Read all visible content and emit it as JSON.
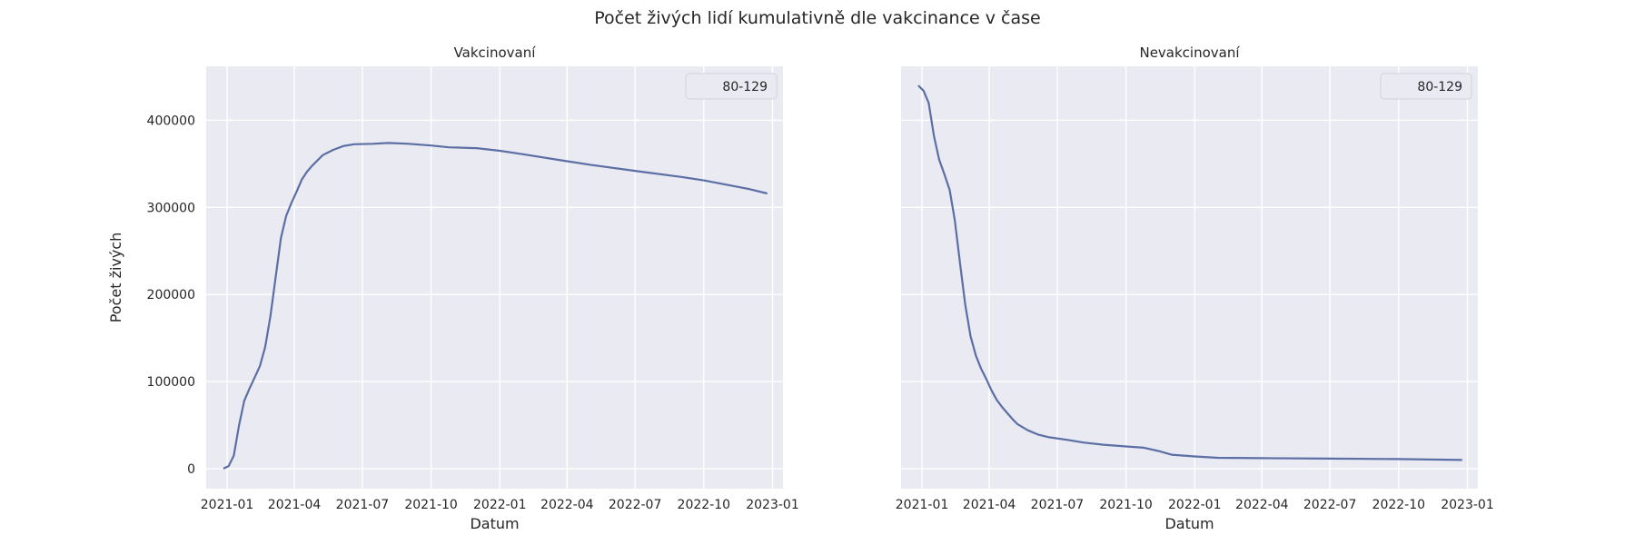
{
  "figure": {
    "suptitle": "Počet živých lidí kumulativně dle vakcinance v čase"
  },
  "colors": {
    "background": "#ffffff",
    "plot_area": "#eaeaf2",
    "grid": "#ffffff",
    "series": "#5b6fa4",
    "text": "#262626"
  },
  "chart_data": [
    {
      "type": "line",
      "title": "Vakcinovaní",
      "xlabel": "Datum",
      "ylabel": "Počet živých",
      "x_ticks": [
        "2021-01",
        "2021-04",
        "2021-07",
        "2021-10",
        "2022-01",
        "2022-04",
        "2022-07",
        "2022-10",
        "2023-01"
      ],
      "y_ticks": [
        "0",
        "100000",
        "200000",
        "300000",
        "400000"
      ],
      "xlim": [
        "2020-12-04",
        "2023-01-15"
      ],
      "ylim": [
        -23000,
        462000
      ],
      "grid": true,
      "legend": {
        "placement": "top-right",
        "entries": [
          "80-129"
        ]
      },
      "series": [
        {
          "name": "80-129",
          "points": [
            [
              "2020-12-27",
              0
            ],
            [
              "2021-01-03",
              3000
            ],
            [
              "2021-01-10",
              15000
            ],
            [
              "2021-01-17",
              50000
            ],
            [
              "2021-01-24",
              78000
            ],
            [
              "2021-01-31",
              92000
            ],
            [
              "2021-02-07",
              105000
            ],
            [
              "2021-02-14",
              118000
            ],
            [
              "2021-02-21",
              140000
            ],
            [
              "2021-02-28",
              175000
            ],
            [
              "2021-03-07",
              220000
            ],
            [
              "2021-03-14",
              265000
            ],
            [
              "2021-03-21",
              290000
            ],
            [
              "2021-03-28",
              305000
            ],
            [
              "2021-04-04",
              318000
            ],
            [
              "2021-04-11",
              332000
            ],
            [
              "2021-04-18",
              341000
            ],
            [
              "2021-04-25",
              348000
            ],
            [
              "2021-05-02",
              354000
            ],
            [
              "2021-05-09",
              360000
            ],
            [
              "2021-05-23",
              366000
            ],
            [
              "2021-06-06",
              370500
            ],
            [
              "2021-06-20",
              372500
            ],
            [
              "2021-07-15",
              373000
            ],
            [
              "2021-08-05",
              374000
            ],
            [
              "2021-09-01",
              373000
            ],
            [
              "2021-10-01",
              371000
            ],
            [
              "2021-10-25",
              369000
            ],
            [
              "2021-12-01",
              368000
            ],
            [
              "2022-01-01",
              365000
            ],
            [
              "2022-02-01",
              361000
            ],
            [
              "2022-04-01",
              353000
            ],
            [
              "2022-05-01",
              349000
            ],
            [
              "2022-07-01",
              342000
            ],
            [
              "2022-09-01",
              335000
            ],
            [
              "2022-10-01",
              331000
            ],
            [
              "2022-11-01",
              326000
            ],
            [
              "2022-12-01",
              321000
            ],
            [
              "2022-12-25",
              316000
            ]
          ]
        }
      ]
    },
    {
      "type": "line",
      "title": "Nevakcinovaní",
      "xlabel": "Datum",
      "ylabel": "",
      "x_ticks": [
        "2021-01",
        "2021-04",
        "2021-07",
        "2021-10",
        "2022-01",
        "2022-04",
        "2022-07",
        "2022-10",
        "2023-01"
      ],
      "y_ticks": [],
      "xlim": [
        "2020-12-04",
        "2023-01-15"
      ],
      "ylim": [
        -23000,
        462000
      ],
      "grid": true,
      "legend": {
        "placement": "top-right",
        "entries": [
          "80-129"
        ]
      },
      "series": [
        {
          "name": "80-129",
          "points": [
            [
              "2020-12-27",
              440000
            ],
            [
              "2021-01-03",
              434000
            ],
            [
              "2021-01-10",
              420000
            ],
            [
              "2021-01-17",
              382000
            ],
            [
              "2021-01-24",
              355000
            ],
            [
              "2021-01-31",
              338000
            ],
            [
              "2021-02-07",
              320000
            ],
            [
              "2021-02-14",
              285000
            ],
            [
              "2021-02-21",
              235000
            ],
            [
              "2021-02-28",
              188000
            ],
            [
              "2021-03-07",
              152000
            ],
            [
              "2021-03-14",
              130000
            ],
            [
              "2021-03-21",
              115000
            ],
            [
              "2021-03-28",
              103000
            ],
            [
              "2021-04-04",
              90000
            ],
            [
              "2021-04-11",
              79000
            ],
            [
              "2021-04-18",
              71000
            ],
            [
              "2021-04-25",
              64000
            ],
            [
              "2021-05-02",
              57000
            ],
            [
              "2021-05-09",
              51000
            ],
            [
              "2021-05-23",
              44000
            ],
            [
              "2021-06-06",
              39000
            ],
            [
              "2021-06-20",
              36000
            ],
            [
              "2021-07-15",
              33000
            ],
            [
              "2021-08-05",
              30000
            ],
            [
              "2021-09-01",
              27500
            ],
            [
              "2021-10-01",
              25500
            ],
            [
              "2021-10-25",
              24000
            ],
            [
              "2021-11-15",
              20000
            ],
            [
              "2021-12-01",
              16000
            ],
            [
              "2022-01-01",
              14000
            ],
            [
              "2022-02-01",
              12500
            ],
            [
              "2022-04-01",
              12000
            ],
            [
              "2022-07-01",
              11500
            ],
            [
              "2022-10-01",
              11000
            ],
            [
              "2022-12-25",
              10000
            ]
          ]
        }
      ]
    }
  ]
}
